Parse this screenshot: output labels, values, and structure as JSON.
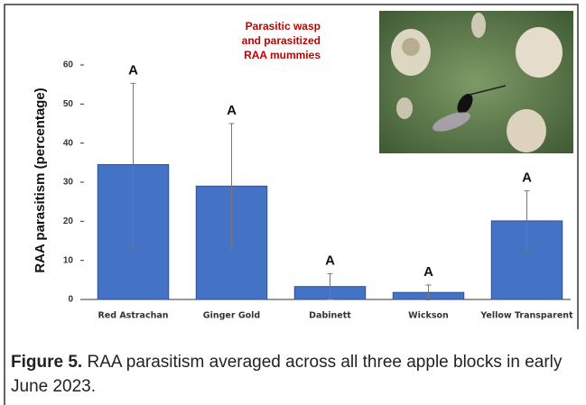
{
  "chart_data": {
    "type": "bar",
    "y_label": "RAA parasitism  (percentage)",
    "categories": [
      "Red Astrachan",
      "Ginger Gold",
      "Dabinett",
      "Wickson",
      "Yellow Transparent"
    ],
    "values": [
      34.5,
      29,
      3.3,
      1.8,
      20.1
    ],
    "errors": [
      20.8,
      16,
      3.3,
      1.9,
      7.7
    ],
    "letters": [
      "A",
      "A",
      "A",
      "A",
      "A"
    ],
    "color": "#4472c4",
    "ylim": [
      0,
      60
    ],
    "yticks": [
      0,
      10,
      20,
      30,
      40,
      50,
      60
    ],
    "inset_label": [
      "Parasitic wasp",
      "and parasitized",
      "RAA mummies"
    ]
  },
  "caption": {
    "label": "Figure 5.",
    "text": "RAA parasitism averaged across all three apple blocks in early June 2023."
  }
}
